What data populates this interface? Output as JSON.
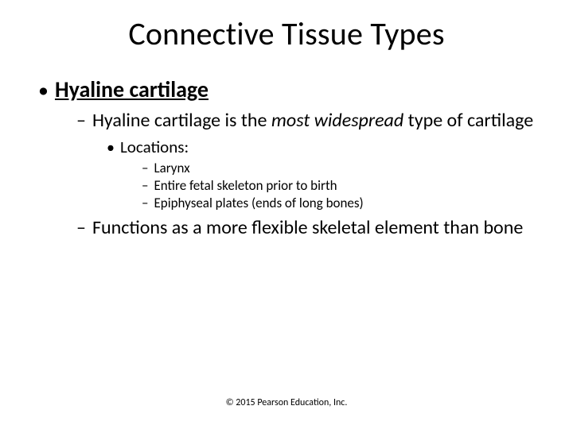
{
  "title": "Connective Tissue Types",
  "lvl1": {
    "text": "Hyaline cartilage"
  },
  "lvl2a": {
    "pre": "Hyaline cartilage is the ",
    "em": "most widespread",
    "post": " type of cartilage"
  },
  "lvl3": {
    "text": "Locations:"
  },
  "lvl4": {
    "a": "Larynx",
    "b": "Entire fetal skeleton prior to birth",
    "c": "Epiphyseal plates (ends of long bones)"
  },
  "lvl2b": {
    "text": "Functions as a more flexible skeletal element than bone"
  },
  "footer": "© 2015 Pearson Education, Inc.",
  "bullets": {
    "dot": "•",
    "dash": "–"
  }
}
